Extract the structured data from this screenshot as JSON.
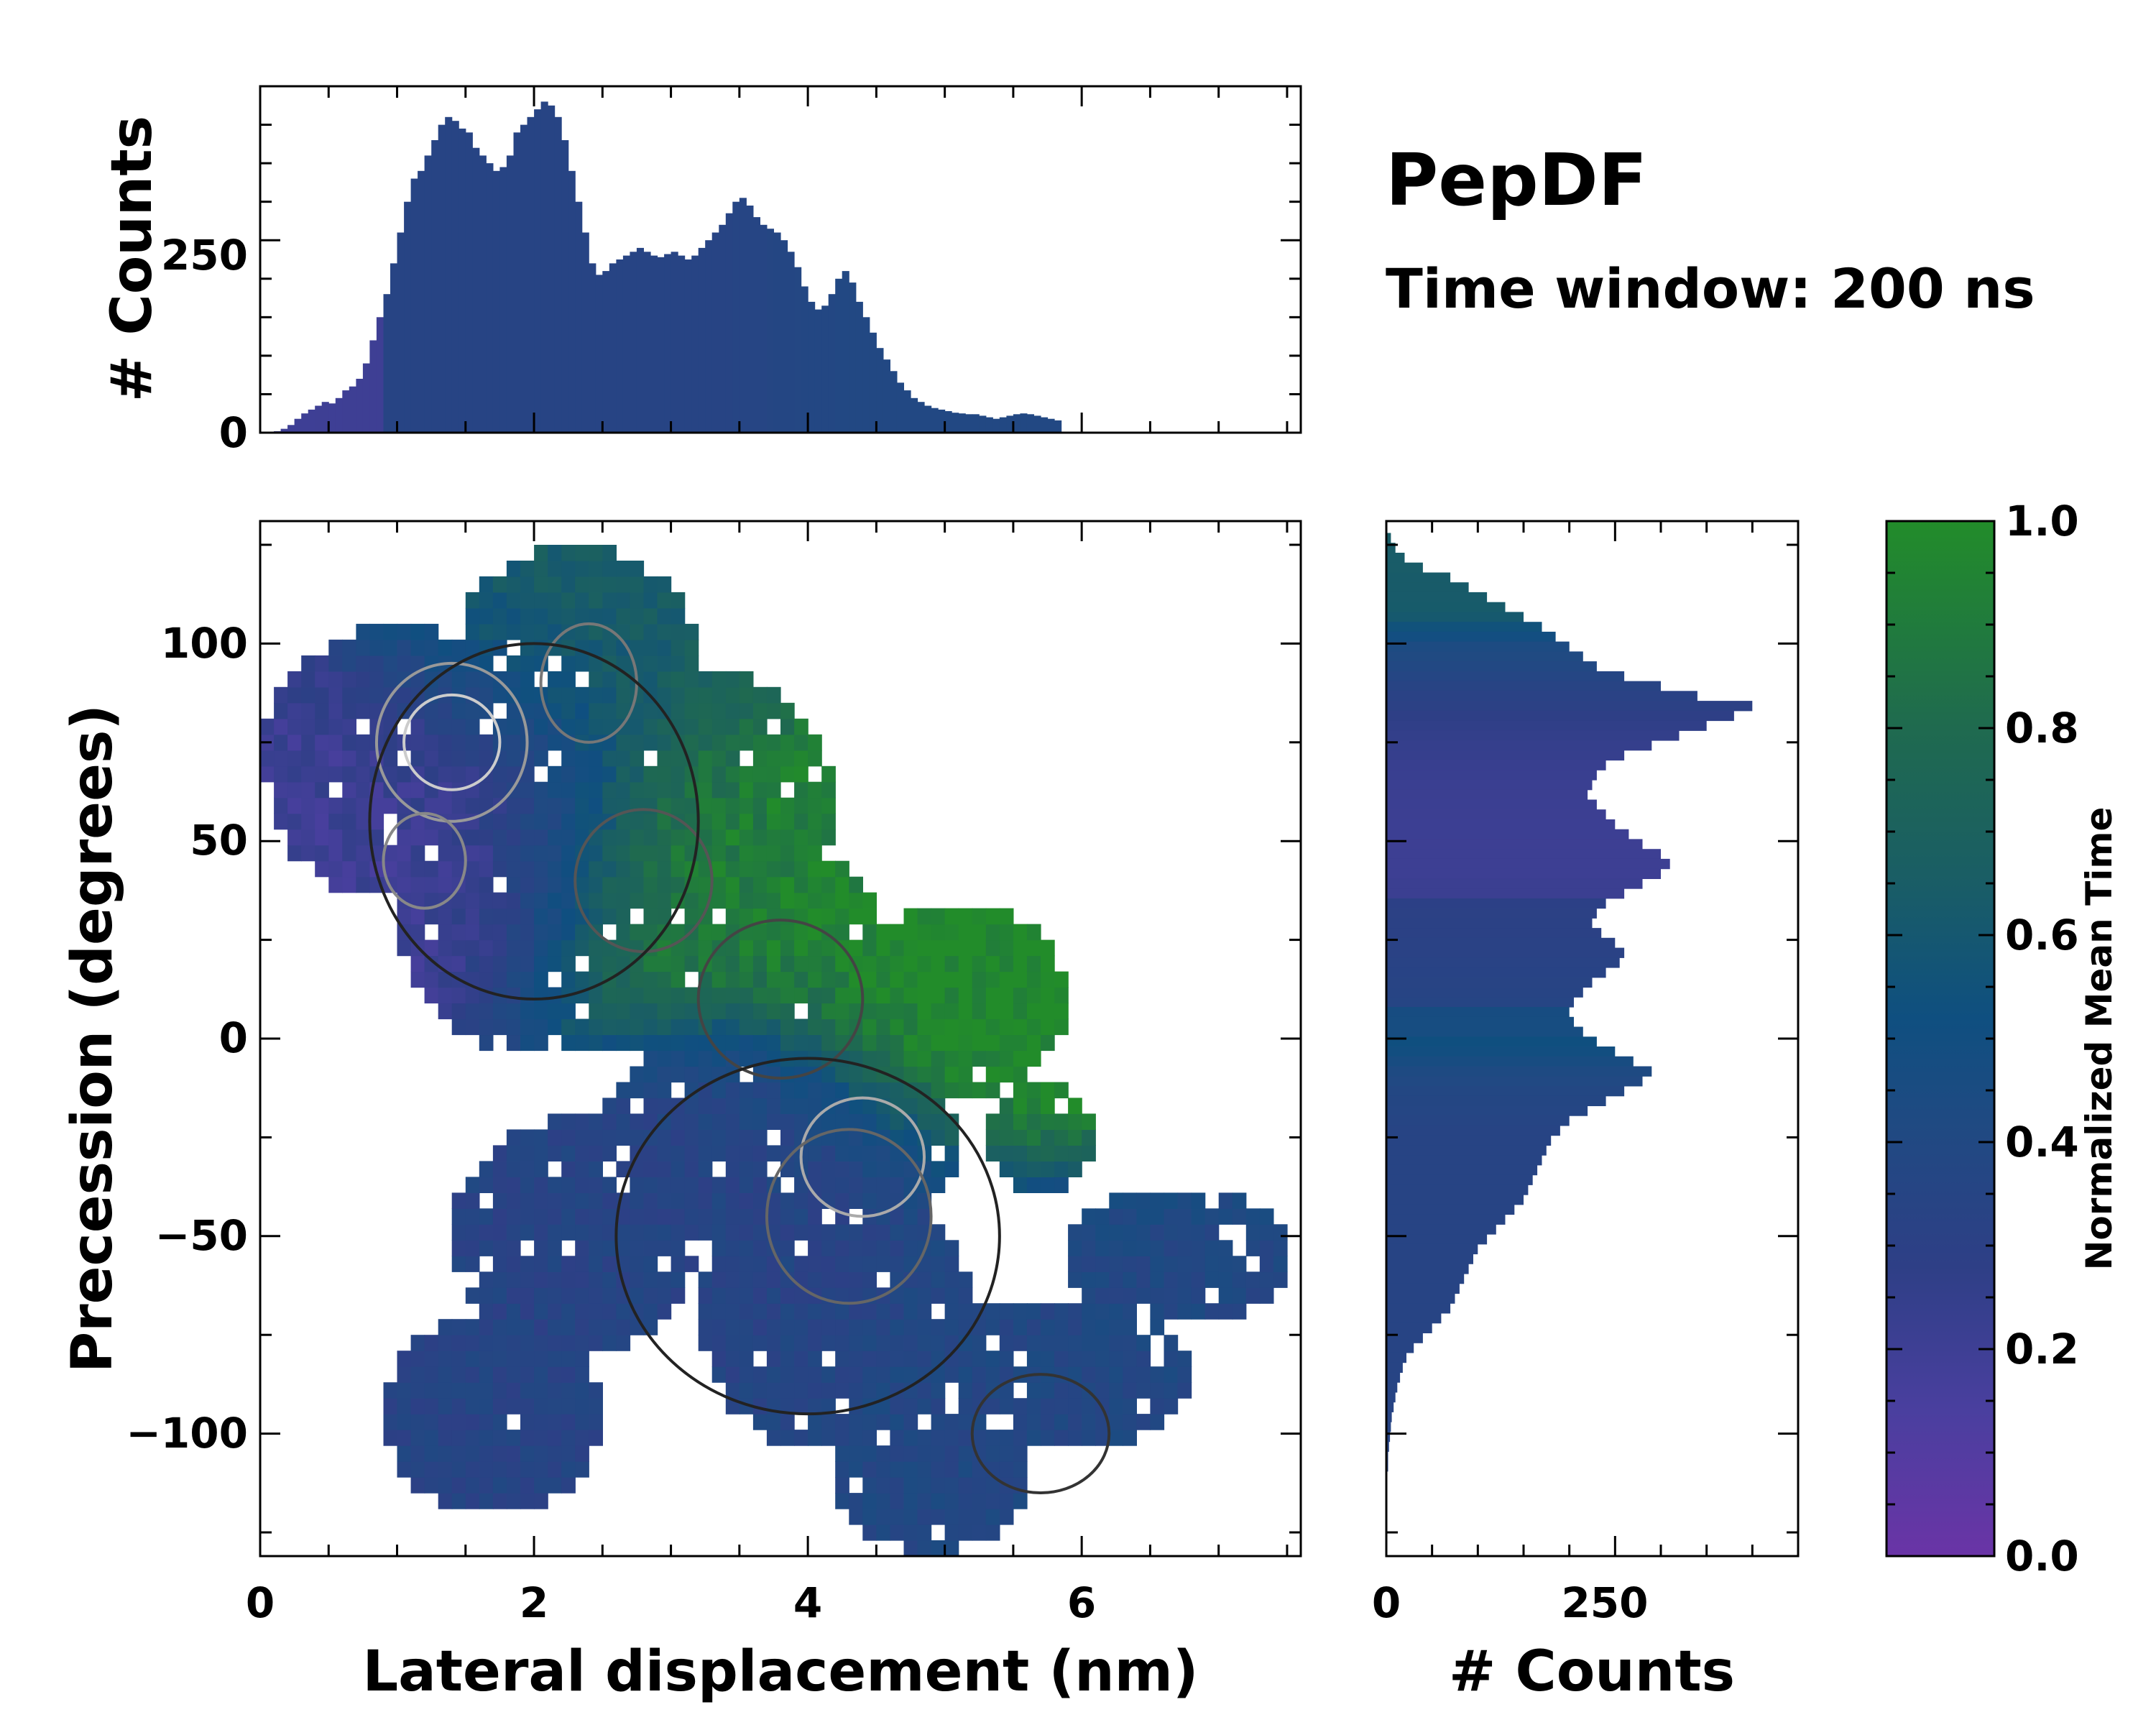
{
  "chart_data": {
    "type": "heatmap",
    "title": "PepDF",
    "subtitle": "Time window: 200 ns",
    "main": {
      "xlabel": "Lateral displacement (nm)",
      "ylabel": "Precession (degrees)",
      "xlim": [
        0,
        7.6
      ],
      "ylim": [
        -131,
        131
      ],
      "xticks": [
        0,
        2,
        4,
        6
      ],
      "yticks": [
        -100,
        -50,
        0,
        50,
        100
      ],
      "description_regions": [
        {
          "cx": 1.5,
          "cy": 60,
          "value": 0.2
        },
        {
          "cx": 3.3,
          "cy": 50,
          "value": 0.95
        },
        {
          "cx": 5.2,
          "cy": 10,
          "value": 1.0
        },
        {
          "cx": 3.8,
          "cy": -40,
          "value": 0.35
        },
        {
          "cx": 5.6,
          "cy": -80,
          "value": 0.4
        },
        {
          "cx": 2.4,
          "cy": 100,
          "value": 0.7
        }
      ]
    },
    "top_histogram": {
      "ylabel": "# Counts",
      "yticks": [
        0,
        250
      ],
      "ylim": [
        0,
        450
      ],
      "x_start": 0.1,
      "x_step": 0.05,
      "values": [
        2,
        5,
        10,
        18,
        25,
        30,
        35,
        40,
        38,
        45,
        55,
        60,
        70,
        90,
        120,
        150,
        180,
        220,
        260,
        300,
        330,
        340,
        360,
        380,
        400,
        410,
        405,
        395,
        390,
        370,
        360,
        350,
        340,
        345,
        360,
        390,
        400,
        410,
        420,
        430,
        425,
        410,
        380,
        340,
        300,
        260,
        220,
        205,
        210,
        220,
        225,
        230,
        235,
        240,
        235,
        230,
        228,
        232,
        235,
        230,
        225,
        230,
        240,
        250,
        260,
        270,
        285,
        300,
        305,
        295,
        280,
        270,
        265,
        260,
        250,
        235,
        215,
        190,
        170,
        160,
        165,
        180,
        200,
        210,
        195,
        170,
        150,
        130,
        110,
        95,
        80,
        65,
        55,
        45,
        40,
        35,
        32,
        30,
        28,
        26,
        25,
        24,
        24,
        22,
        20,
        18,
        20,
        22,
        24,
        25,
        24,
        22,
        20,
        18,
        16
      ],
      "colors_by_bin": "same colormap as main panel (Normalized Mean Time)"
    },
    "right_histogram": {
      "xlabel": "# Counts",
      "xticks": [
        0,
        250
      ],
      "xlim": [
        0,
        450
      ],
      "y_start": 128,
      "y_step": -2.5,
      "values": [
        5,
        10,
        20,
        40,
        70,
        90,
        110,
        130,
        150,
        170,
        185,
        200,
        215,
        230,
        260,
        300,
        340,
        400,
        380,
        350,
        320,
        290,
        260,
        240,
        230,
        225,
        220,
        230,
        240,
        250,
        265,
        280,
        300,
        310,
        300,
        280,
        260,
        240,
        230,
        225,
        235,
        250,
        260,
        255,
        240,
        225,
        215,
        205,
        200,
        205,
        215,
        230,
        250,
        270,
        290,
        280,
        260,
        240,
        220,
        200,
        190,
        180,
        175,
        170,
        165,
        160,
        155,
        150,
        140,
        130,
        120,
        110,
        100,
        95,
        90,
        85,
        80,
        75,
        70,
        60,
        50,
        40,
        30,
        22,
        18,
        15,
        12,
        10,
        8,
        6,
        5,
        4,
        3,
        2,
        2,
        1,
        1,
        1,
        0,
        0,
        0,
        0,
        0,
        0,
        0,
        0
      ]
    },
    "colorbar": {
      "label": "Normalized Mean Time",
      "ticks": [
        "0.0",
        "0.2",
        "0.4",
        "0.6",
        "0.8",
        "1.0"
      ],
      "range": [
        0,
        1
      ],
      "colormap": [
        "#6a34a6",
        "#4a3f9f",
        "#2e3f86",
        "#1f4a82",
        "#0f4f80",
        "#1a5e64",
        "#1f6a4f",
        "#228c2a"
      ]
    }
  },
  "tick_labels": {
    "main_x": [
      "0",
      "2",
      "4",
      "6"
    ],
    "main_y": [
      "100",
      "50",
      "0",
      "−50",
      "−100"
    ],
    "top_y": [
      "0",
      "250"
    ],
    "right_x": [
      "0",
      "250"
    ],
    "cbar": [
      "0.0",
      "0.2",
      "0.4",
      "0.6",
      "0.8",
      "1.0"
    ]
  }
}
